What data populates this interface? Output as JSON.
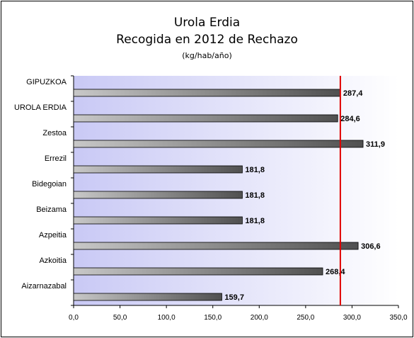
{
  "chart_data": {
    "type": "bar",
    "orientation": "horizontal",
    "title": "Urola Erdia",
    "subtitle": "Recogida en 2012 de Rechazo",
    "unit_label": "(kg/hab/año)",
    "categories": [
      "GIPUZKOA",
      "UROLA ERDIA",
      "Zestoa",
      "Errezil",
      "Bidegoian",
      "Beizama",
      "Azpeitia",
      "Azkoitia",
      "Aizarnazabal"
    ],
    "values": [
      287.4,
      284.6,
      311.9,
      181.8,
      181.8,
      181.8,
      306.6,
      268.4,
      159.7
    ],
    "data_labels": [
      "287,4",
      "284,6",
      "311,9",
      "181,8",
      "181,8",
      "181,8",
      "306,6",
      "268,4",
      "159,7"
    ],
    "xlim": [
      0,
      350
    ],
    "xticks": [
      0,
      50,
      100,
      150,
      200,
      250,
      300,
      350
    ],
    "xtick_labels": [
      "0,0",
      "50,0",
      "100,0",
      "150,0",
      "200,0",
      "250,0",
      "300,0",
      "350,0"
    ],
    "reference_line": 287.4,
    "colors": {
      "reference_line": "#e00000",
      "bar_start": "#c8c8c8",
      "bar_end": "#505050",
      "plot_bg_start": "#c9c9f5",
      "plot_bg_end": "#ffffff"
    },
    "xlabel": "",
    "ylabel": "",
    "grid": false,
    "legend": "none"
  }
}
